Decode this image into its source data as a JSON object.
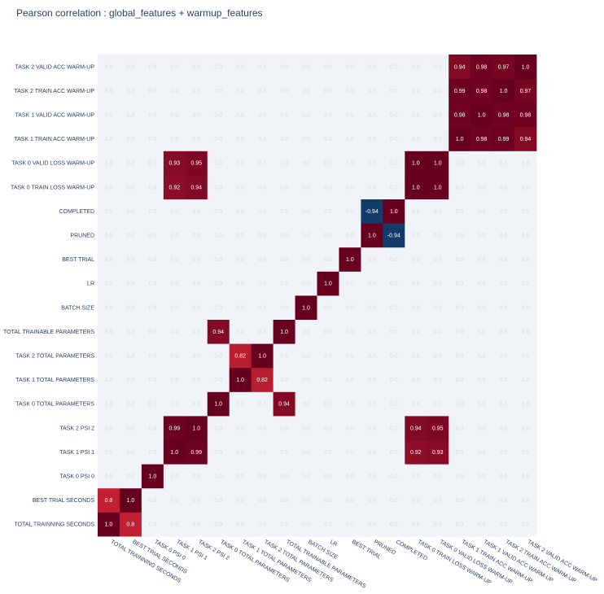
{
  "chart_data": {
    "type": "heatmap",
    "title": "Pearson correlation : global_features + warmup_features",
    "x_labels": [
      "TOTAL TRAINNING SECONDS",
      "BEST TRIAL SECONDS",
      "TASK 0 PSI 0",
      "TASK 1 PSI 1",
      "TASK 2 PSI 2",
      "TASK 0 TOTAL PARAMETERS",
      "TASK 1 TOTAL PARAMETERS",
      "TASK 2 TOTAL PARAMETERS",
      "TOTAL TRAINABLE PARAMETERS",
      "BATCH SIZE",
      "LR",
      "BEST TRIAL",
      "PRUNED",
      "COMPLETED",
      "TASK 0 TRAIN LOSS WARM-UP",
      "TASK 0 VALID LOSS WARM-UP",
      "TASK 1 TRAIN ACC WARM-UP",
      "TASK 1 VALID ACC WARM-UP",
      "TASK 2 TRAIN ACC WARM-UP",
      "TASK 2 VALID ACC WARM-UP"
    ],
    "y_labels_bottom_to_top": [
      "TOTAL TRAINNING SECONDS",
      "BEST TRIAL SECONDS",
      "TASK 0 PSI 0",
      "TASK 1 PSI 1",
      "TASK 2 PSI 2",
      "TASK 0 TOTAL PARAMETERS",
      "TASK 1 TOTAL PARAMETERS",
      "TASK 2 TOTAL PARAMETERS",
      "TOTAL TRAINABLE PARAMETERS",
      "BATCH SIZE",
      "LR",
      "BEST TRIAL",
      "PRUNED",
      "COMPLETED",
      "TASK 0 TRAIN LOSS WARM-UP",
      "TASK 0 VALID LOSS WARM-UP",
      "TASK 1 TRAIN ACC WARM-UP",
      "TASK 1 VALID ACC WARM-UP",
      "TASK 2 TRAIN ACC WARM-UP",
      "TASK 2 VALID ACC WARM-UP"
    ],
    "nonzero_cells": [
      {
        "row": 0,
        "col": 0,
        "value": 1.0
      },
      {
        "row": 0,
        "col": 1,
        "value": 0.8
      },
      {
        "row": 1,
        "col": 0,
        "value": 0.8
      },
      {
        "row": 1,
        "col": 1,
        "value": 1.0
      },
      {
        "row": 2,
        "col": 2,
        "value": 1.0
      },
      {
        "row": 3,
        "col": 3,
        "value": 1.0
      },
      {
        "row": 3,
        "col": 4,
        "value": 0.99
      },
      {
        "row": 3,
        "col": 14,
        "value": 0.92
      },
      {
        "row": 3,
        "col": 15,
        "value": 0.93
      },
      {
        "row": 4,
        "col": 3,
        "value": 0.99
      },
      {
        "row": 4,
        "col": 4,
        "value": 1.0
      },
      {
        "row": 4,
        "col": 14,
        "value": 0.94
      },
      {
        "row": 4,
        "col": 15,
        "value": 0.95
      },
      {
        "row": 5,
        "col": 5,
        "value": 1.0
      },
      {
        "row": 5,
        "col": 8,
        "value": 0.94
      },
      {
        "row": 6,
        "col": 6,
        "value": 1.0
      },
      {
        "row": 6,
        "col": 7,
        "value": 0.82
      },
      {
        "row": 7,
        "col": 6,
        "value": 0.82
      },
      {
        "row": 7,
        "col": 7,
        "value": 1.0
      },
      {
        "row": 8,
        "col": 5,
        "value": 0.94
      },
      {
        "row": 8,
        "col": 8,
        "value": 1.0
      },
      {
        "row": 9,
        "col": 9,
        "value": 1.0
      },
      {
        "row": 10,
        "col": 10,
        "value": 1.0
      },
      {
        "row": 11,
        "col": 11,
        "value": 1.0
      },
      {
        "row": 12,
        "col": 12,
        "value": 1.0
      },
      {
        "row": 12,
        "col": 13,
        "value": -0.94
      },
      {
        "row": 13,
        "col": 12,
        "value": -0.94
      },
      {
        "row": 13,
        "col": 13,
        "value": 1.0
      },
      {
        "row": 14,
        "col": 3,
        "value": 0.92
      },
      {
        "row": 14,
        "col": 4,
        "value": 0.94
      },
      {
        "row": 14,
        "col": 14,
        "value": 1.0
      },
      {
        "row": 14,
        "col": 15,
        "value": 1.0
      },
      {
        "row": 15,
        "col": 3,
        "value": 0.93
      },
      {
        "row": 15,
        "col": 4,
        "value": 0.95
      },
      {
        "row": 15,
        "col": 14,
        "value": 1.0
      },
      {
        "row": 15,
        "col": 15,
        "value": 1.0
      },
      {
        "row": 16,
        "col": 16,
        "value": 1.0
      },
      {
        "row": 16,
        "col": 17,
        "value": 0.98
      },
      {
        "row": 16,
        "col": 18,
        "value": 0.99
      },
      {
        "row": 16,
        "col": 19,
        "value": 0.94
      },
      {
        "row": 17,
        "col": 16,
        "value": 0.98
      },
      {
        "row": 17,
        "col": 17,
        "value": 1.0
      },
      {
        "row": 17,
        "col": 18,
        "value": 0.98
      },
      {
        "row": 17,
        "col": 19,
        "value": 0.98
      },
      {
        "row": 18,
        "col": 16,
        "value": 0.99
      },
      {
        "row": 18,
        "col": 17,
        "value": 0.98
      },
      {
        "row": 18,
        "col": 18,
        "value": 1.0
      },
      {
        "row": 18,
        "col": 19,
        "value": 0.97
      },
      {
        "row": 19,
        "col": 16,
        "value": 0.94
      },
      {
        "row": 19,
        "col": 17,
        "value": 0.98
      },
      {
        "row": 19,
        "col": 18,
        "value": 0.97
      },
      {
        "row": 19,
        "col": 19,
        "value": 1.0
      }
    ],
    "default_value": 0.0,
    "zlim": [
      -1,
      1
    ],
    "colorscale": {
      "negative": "#053061",
      "zero": "#f0f3f7",
      "positive": "#67001f",
      "mid_positive": "#c22032"
    }
  }
}
